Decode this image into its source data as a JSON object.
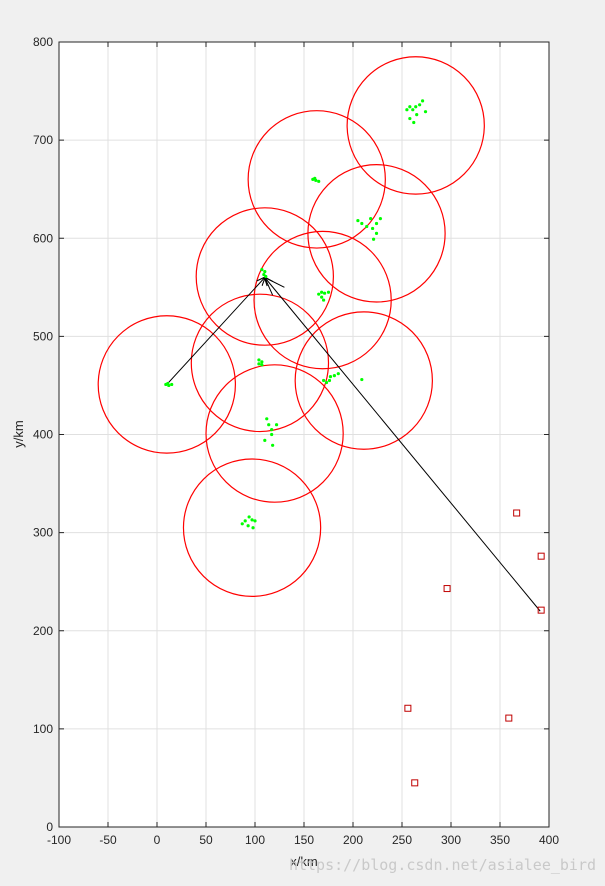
{
  "chart_data": {
    "type": "scatter",
    "title": "",
    "xlabel": "x/km",
    "ylabel": "y/km",
    "xlim": [
      -100,
      400
    ],
    "ylim": [
      0,
      800
    ],
    "xticks": [
      -100,
      -50,
      0,
      50,
      100,
      150,
      200,
      250,
      300,
      350,
      400
    ],
    "yticks": [
      0,
      100,
      200,
      300,
      400,
      500,
      600,
      700,
      800
    ],
    "grid": true,
    "colors": {
      "circle": "#ff0000",
      "point": "#00ff00",
      "square": "#c00000",
      "arrow": "#000000",
      "grid": "#e0e0e0",
      "axes_bg": "#ffffff",
      "figure_bg": "#f0f0f0"
    },
    "coverage_circles": {
      "radius": 70,
      "centers": [
        [
          264,
          715
        ],
        [
          163,
          660
        ],
        [
          224,
          605
        ],
        [
          110,
          561
        ],
        [
          169,
          537
        ],
        [
          10,
          451
        ],
        [
          105,
          473
        ],
        [
          211,
          455
        ],
        [
          120,
          401
        ],
        [
          97,
          305
        ]
      ]
    },
    "points": [
      [
        255,
        731
      ],
      [
        258,
        734
      ],
      [
        261,
        731
      ],
      [
        264,
        734
      ],
      [
        268,
        736
      ],
      [
        271,
        740
      ],
      [
        274,
        729
      ],
      [
        265,
        726
      ],
      [
        258,
        722
      ],
      [
        262,
        718
      ],
      [
        159,
        660
      ],
      [
        162,
        659
      ],
      [
        165,
        658
      ],
      [
        161,
        661
      ],
      [
        205,
        618
      ],
      [
        209,
        615
      ],
      [
        214,
        612
      ],
      [
        220,
        610
      ],
      [
        224,
        615
      ],
      [
        228,
        620
      ],
      [
        218,
        620
      ],
      [
        224,
        605
      ],
      [
        221,
        599
      ],
      [
        107,
        568
      ],
      [
        110,
        566
      ],
      [
        109,
        563
      ],
      [
        111,
        561
      ],
      [
        165,
        543
      ],
      [
        168,
        545
      ],
      [
        171,
        544
      ],
      [
        168,
        540
      ],
      [
        175,
        545
      ],
      [
        170,
        537
      ],
      [
        9,
        451
      ],
      [
        12,
        450
      ],
      [
        15,
        451
      ],
      [
        11,
        452
      ],
      [
        104,
        476
      ],
      [
        107,
        474
      ],
      [
        104,
        472
      ],
      [
        107,
        471
      ],
      [
        173,
        453
      ],
      [
        177,
        459
      ],
      [
        181,
        460
      ],
      [
        185,
        462
      ],
      [
        176,
        455
      ],
      [
        170,
        455
      ],
      [
        209,
        456
      ],
      [
        112,
        416
      ],
      [
        114,
        410
      ],
      [
        117,
        405
      ],
      [
        122,
        410
      ],
      [
        117,
        400
      ],
      [
        110,
        394
      ],
      [
        118,
        389
      ],
      [
        87,
        309
      ],
      [
        90,
        312
      ],
      [
        94,
        316
      ],
      [
        97,
        313
      ],
      [
        100,
        312
      ],
      [
        93,
        307
      ],
      [
        98,
        305
      ]
    ],
    "squares": [
      [
        367,
        320
      ],
      [
        392,
        276
      ],
      [
        296,
        243
      ],
      [
        392,
        221
      ],
      [
        256,
        121
      ],
      [
        359,
        111
      ],
      [
        263,
        45
      ]
    ],
    "arrows": {
      "hub": [
        110,
        560
      ],
      "from_points": [
        [
          10,
          451
        ],
        [
          391,
          220
        ]
      ],
      "short_segments": [
        [
          [
            110,
            560
          ],
          [
            130,
            550
          ]
        ],
        [
          [
            110,
            560
          ],
          [
            118,
            542
          ]
        ]
      ]
    },
    "watermark": "https://blog.csdn.net/asialee_bird"
  }
}
